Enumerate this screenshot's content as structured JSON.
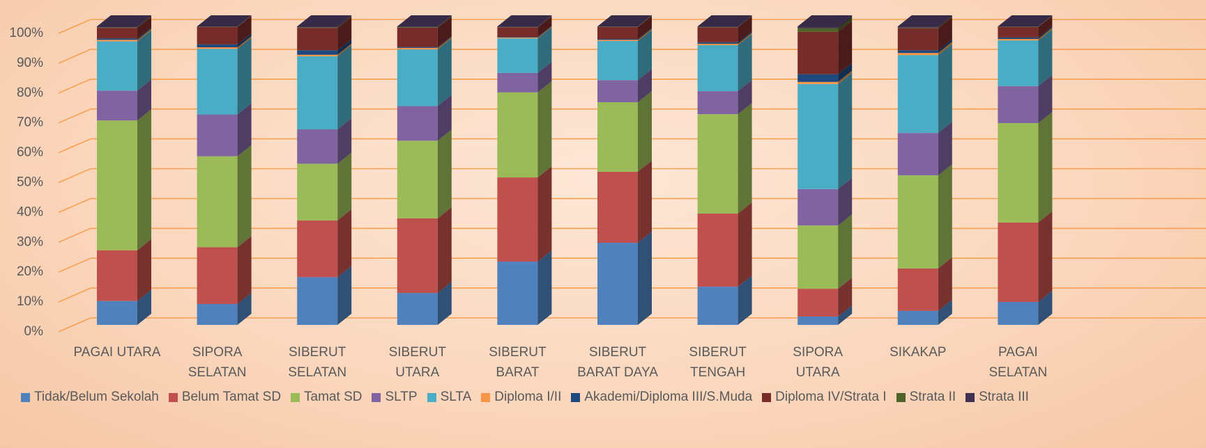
{
  "chart_data": {
    "type": "stacked_bar_3d",
    "categories": [
      "PAGAI UTARA",
      "SIPORA\nSELATAN",
      "SIBERUT\nSELATAN",
      "SIBERUT\nUTARA",
      "SIBERUT\nBARAT",
      "SIBERUT\nBARAT DAYA",
      "SIBERUT\nTENGAH",
      "SIPORA\nUTARA",
      "SIKAKAP",
      "PAGAI\nSELATAN"
    ],
    "series": [
      {
        "name": "Tidak/Belum Sekolah",
        "color": "#4f81bd",
        "values": [
          8,
          7,
          16,
          10.7,
          21.2,
          27.5,
          12.8,
          2.8,
          4.7,
          7.7
        ]
      },
      {
        "name": "Belum Tamat SD",
        "color": "#c0504d",
        "values": [
          17,
          19,
          19,
          25,
          28.2,
          23.8,
          24.5,
          9.3,
          14.2,
          26.6
        ]
      },
      {
        "name": "Tamat SD",
        "color": "#9bbb59",
        "values": [
          43.5,
          30.5,
          19,
          26,
          28.5,
          23.3,
          33.3,
          21.2,
          31.2,
          33.3
        ]
      },
      {
        "name": "SLTP",
        "color": "#8064a2",
        "values": [
          10,
          14,
          11.5,
          11.6,
          6.5,
          7.4,
          7.7,
          12.2,
          14.2,
          12.4
        ]
      },
      {
        "name": "SLTA",
        "color": "#4bacc6",
        "values": [
          16.5,
          22,
          24.5,
          19,
          11.6,
          13.1,
          15.4,
          35.2,
          26.1,
          15.3
        ]
      },
      {
        "name": "Diploma I/II",
        "color": "#f79646",
        "values": [
          0.5,
          0.5,
          0.5,
          0.5,
          0.3,
          0.4,
          0.5,
          0.7,
          0.7,
          0.5
        ]
      },
      {
        "name": "Akademi/Diploma III/S.Muda",
        "color": "#1f497d",
        "values": [
          0.5,
          1,
          1.5,
          0.3,
          0.2,
          0.3,
          0.5,
          2.6,
          0.9,
          0.5
        ]
      },
      {
        "name": "Diploma IV/Strata I",
        "color": "#772c2a",
        "values": [
          3.5,
          5.8,
          7.5,
          6.5,
          3.2,
          4,
          5,
          14.2,
          7.4,
          3.5
        ]
      },
      {
        "name": "Strata II",
        "color": "#4f6228",
        "values": [
          0.2,
          0.1,
          0.2,
          0.2,
          0.1,
          0.1,
          0.1,
          1.2,
          0.2,
          0.1
        ]
      },
      {
        "name": "Strata III",
        "color": "#403152",
        "values": [
          0.3,
          0.1,
          0.3,
          0.2,
          0.2,
          0.1,
          0.2,
          0.6,
          0.4,
          0.1
        ]
      }
    ],
    "ylim": [
      0,
      100
    ],
    "yticks": [
      {
        "value": 0,
        "label": "0%"
      },
      {
        "value": 10,
        "label": "10%"
      },
      {
        "value": 20,
        "label": "20%"
      },
      {
        "value": 30,
        "label": "30%"
      },
      {
        "value": 40,
        "label": "40%"
      },
      {
        "value": 50,
        "label": "50%"
      },
      {
        "value": 60,
        "label": "60%"
      },
      {
        "value": 70,
        "label": "70%"
      },
      {
        "value": 80,
        "label": "80%"
      },
      {
        "value": 90,
        "label": "90%"
      },
      {
        "value": 100,
        "label": "100%"
      }
    ],
    "grid": true
  }
}
